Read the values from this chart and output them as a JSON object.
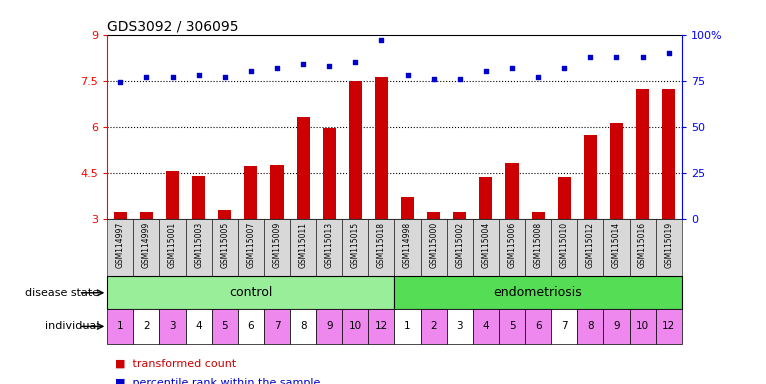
{
  "title": "GDS3092 / 306095",
  "samples": [
    "GSM114997",
    "GSM114999",
    "GSM115001",
    "GSM115003",
    "GSM115005",
    "GSM115007",
    "GSM115009",
    "GSM115011",
    "GSM115013",
    "GSM115015",
    "GSM115018",
    "GSM114998",
    "GSM115000",
    "GSM115002",
    "GSM115004",
    "GSM115006",
    "GSM115008",
    "GSM115010",
    "GSM115012",
    "GSM115014",
    "GSM115016",
    "GSM115019"
  ],
  "transformed_count": [
    3.22,
    3.22,
    4.55,
    4.38,
    3.28,
    4.72,
    4.75,
    6.32,
    5.95,
    7.5,
    7.62,
    3.72,
    3.22,
    3.22,
    4.35,
    4.82,
    3.22,
    4.35,
    5.72,
    6.12,
    7.22,
    7.22
  ],
  "percentile_rank": [
    74,
    77,
    77,
    78,
    77,
    80,
    82,
    84,
    83,
    85,
    97,
    78,
    76,
    76,
    80,
    82,
    77,
    82,
    88,
    88,
    88,
    90
  ],
  "individual": [
    1,
    2,
    3,
    4,
    5,
    6,
    7,
    8,
    9,
    10,
    12,
    1,
    2,
    3,
    4,
    5,
    6,
    7,
    8,
    9,
    10,
    12
  ],
  "indiv_colors": [
    "#ee88ee",
    "#ffffff",
    "#ee88ee",
    "#ffffff",
    "#ee88ee",
    "#ffffff",
    "#ee88ee",
    "#ffffff",
    "#ee88ee",
    "#ee88ee",
    "#ee88ee",
    "#ffffff",
    "#ee88ee",
    "#ffffff",
    "#ee88ee",
    "#ee88ee",
    "#ee88ee",
    "#ffffff",
    "#ee88ee",
    "#ee88ee",
    "#ee88ee",
    "#ee88ee"
  ],
  "n_control": 11,
  "n_endo": 11,
  "ylim_left": [
    3,
    9
  ],
  "ylim_right": [
    0,
    100
  ],
  "yticks_left": [
    3,
    4.5,
    6,
    7.5,
    9
  ],
  "yticks_right": [
    0,
    25,
    50,
    75,
    100
  ],
  "bar_color": "#cc0000",
  "dot_color": "#0000cc",
  "control_color": "#99ee99",
  "endo_color": "#55dd55",
  "sample_box_color": "#d8d8d8",
  "control_label": "control",
  "endo_label": "endometriosis",
  "row_label_disease": "disease state",
  "row_label_individual": "individual",
  "legend_bar_label": "transformed count",
  "legend_dot_label": "percentile rank within the sample",
  "title_fontsize": 10,
  "background_color": "#ffffff"
}
